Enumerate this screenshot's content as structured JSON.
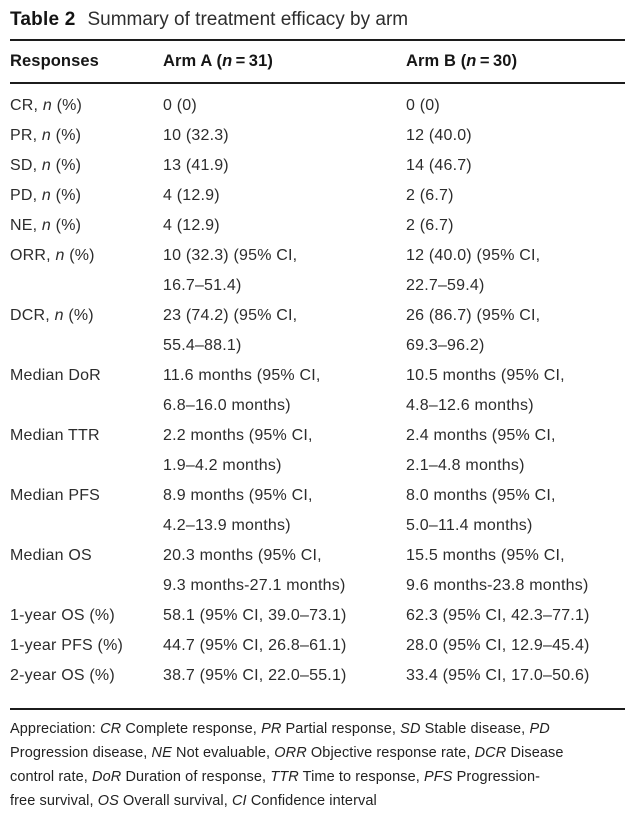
{
  "colors": {
    "background": "#ffffff",
    "text": "#2a2a2a",
    "rule": "#1c1c1c"
  },
  "title": {
    "label": "Table 2",
    "caption": "Summary of treatment efficacy by arm"
  },
  "table": {
    "columns": [
      {
        "name": "responses",
        "segments": [
          {
            "t": "Responses"
          }
        ]
      },
      {
        "name": "arm-a",
        "segments": [
          {
            "t": "Arm A ("
          },
          {
            "t": "n",
            "i": true
          },
          {
            "t": " = 31)"
          }
        ]
      },
      {
        "name": "arm-b",
        "segments": [
          {
            "t": "Arm B ("
          },
          {
            "t": "n",
            "i": true
          },
          {
            "t": " = 30)"
          }
        ]
      }
    ],
    "rows": [
      {
        "label": [
          {
            "t": "CR, "
          },
          {
            "t": "n",
            "i": true
          },
          {
            "t": " (%)"
          }
        ],
        "arm_a": [
          "0 (0)"
        ],
        "arm_b": [
          "0 (0)"
        ]
      },
      {
        "label": [
          {
            "t": "PR, "
          },
          {
            "t": "n",
            "i": true
          },
          {
            "t": " (%)"
          }
        ],
        "arm_a": [
          "10 (32.3)"
        ],
        "arm_b": [
          "12 (40.0)"
        ]
      },
      {
        "label": [
          {
            "t": "SD, "
          },
          {
            "t": "n",
            "i": true
          },
          {
            "t": " (%)"
          }
        ],
        "arm_a": [
          "13 (41.9)"
        ],
        "arm_b": [
          "14 (46.7)"
        ]
      },
      {
        "label": [
          {
            "t": "PD, "
          },
          {
            "t": "n",
            "i": true
          },
          {
            "t": " (%)"
          }
        ],
        "arm_a": [
          "4 (12.9)"
        ],
        "arm_b": [
          "2 (6.7)"
        ]
      },
      {
        "label": [
          {
            "t": "NE, "
          },
          {
            "t": "n",
            "i": true
          },
          {
            "t": " (%)"
          }
        ],
        "arm_a": [
          "4 (12.9)"
        ],
        "arm_b": [
          "2 (6.7)"
        ]
      },
      {
        "label": [
          {
            "t": "ORR, "
          },
          {
            "t": "n",
            "i": true
          },
          {
            "t": " (%)"
          }
        ],
        "arm_a": [
          "10 (32.3) (95% CI,",
          "16.7–51.4)"
        ],
        "arm_b": [
          "12 (40.0) (95% CI,",
          "22.7–59.4)"
        ]
      },
      {
        "label": [
          {
            "t": "DCR, "
          },
          {
            "t": "n",
            "i": true
          },
          {
            "t": " (%)"
          }
        ],
        "arm_a": [
          "23 (74.2) (95% CI,",
          "55.4–88.1)"
        ],
        "arm_b": [
          "26 (86.7) (95% CI,",
          "69.3–96.2)"
        ]
      },
      {
        "label": [
          {
            "t": "Median DoR"
          }
        ],
        "arm_a": [
          "11.6 months (95% CI,",
          "6.8–16.0 months)"
        ],
        "arm_b": [
          "10.5 months (95% CI,",
          "4.8–12.6 months)"
        ]
      },
      {
        "label": [
          {
            "t": "Median TTR"
          }
        ],
        "arm_a": [
          "2.2 months (95% CI,",
          "1.9–4.2 months)"
        ],
        "arm_b": [
          "2.4 months (95% CI,",
          "2.1–4.8 months)"
        ]
      },
      {
        "label": [
          {
            "t": "Median PFS"
          }
        ],
        "arm_a": [
          "8.9 months (95% CI,",
          "4.2–13.9 months)"
        ],
        "arm_b": [
          "8.0 months (95% CI,",
          "5.0–11.4 months)"
        ]
      },
      {
        "label": [
          {
            "t": "Median OS"
          }
        ],
        "arm_a": [
          "20.3 months (95% CI,",
          "9.3 months-27.1 months)"
        ],
        "arm_b": [
          "15.5 months (95% CI,",
          "9.6 months-23.8 months)"
        ]
      },
      {
        "label": [
          {
            "t": "1-year OS (%)"
          }
        ],
        "arm_a": [
          "58.1 (95% CI, 39.0–73.1)"
        ],
        "arm_b": [
          "62.3 (95% CI, 42.3–77.1)"
        ]
      },
      {
        "label": [
          {
            "t": "1-year PFS (%)"
          }
        ],
        "arm_a": [
          "44.7 (95% CI, 26.8–61.1)"
        ],
        "arm_b": [
          "28.0 (95% CI, 12.9–45.4)"
        ]
      },
      {
        "label": [
          {
            "t": "2-year OS (%)"
          }
        ],
        "arm_a": [
          "38.7 (95% CI, 22.0–55.1)"
        ],
        "arm_b": [
          "33.4 (95% CI, 17.0–50.6)"
        ]
      }
    ]
  },
  "footnote": {
    "lines": [
      [
        {
          "t": "Appreciation: "
        },
        {
          "t": "CR",
          "i": true
        },
        {
          "t": " Complete response, "
        },
        {
          "t": "PR",
          "i": true
        },
        {
          "t": " Partial response, "
        },
        {
          "t": "SD",
          "i": true
        },
        {
          "t": " Stable disease, "
        },
        {
          "t": "PD",
          "i": true
        }
      ],
      [
        {
          "t": "Progression disease, "
        },
        {
          "t": "NE",
          "i": true
        },
        {
          "t": " Not evaluable, "
        },
        {
          "t": "ORR",
          "i": true
        },
        {
          "t": " Objective response rate, "
        },
        {
          "t": "DCR",
          "i": true
        },
        {
          "t": " Disease"
        }
      ],
      [
        {
          "t": "control rate, "
        },
        {
          "t": "DoR",
          "i": true
        },
        {
          "t": " Duration of response, "
        },
        {
          "t": "TTR",
          "i": true
        },
        {
          "t": " Time to response, "
        },
        {
          "t": "PFS",
          "i": true
        },
        {
          "t": " Progression-"
        }
      ],
      [
        {
          "t": "free survival, "
        },
        {
          "t": "OS",
          "i": true
        },
        {
          "t": " Overall survival, "
        },
        {
          "t": "CI",
          "i": true
        },
        {
          "t": " Confidence interval"
        }
      ]
    ]
  }
}
